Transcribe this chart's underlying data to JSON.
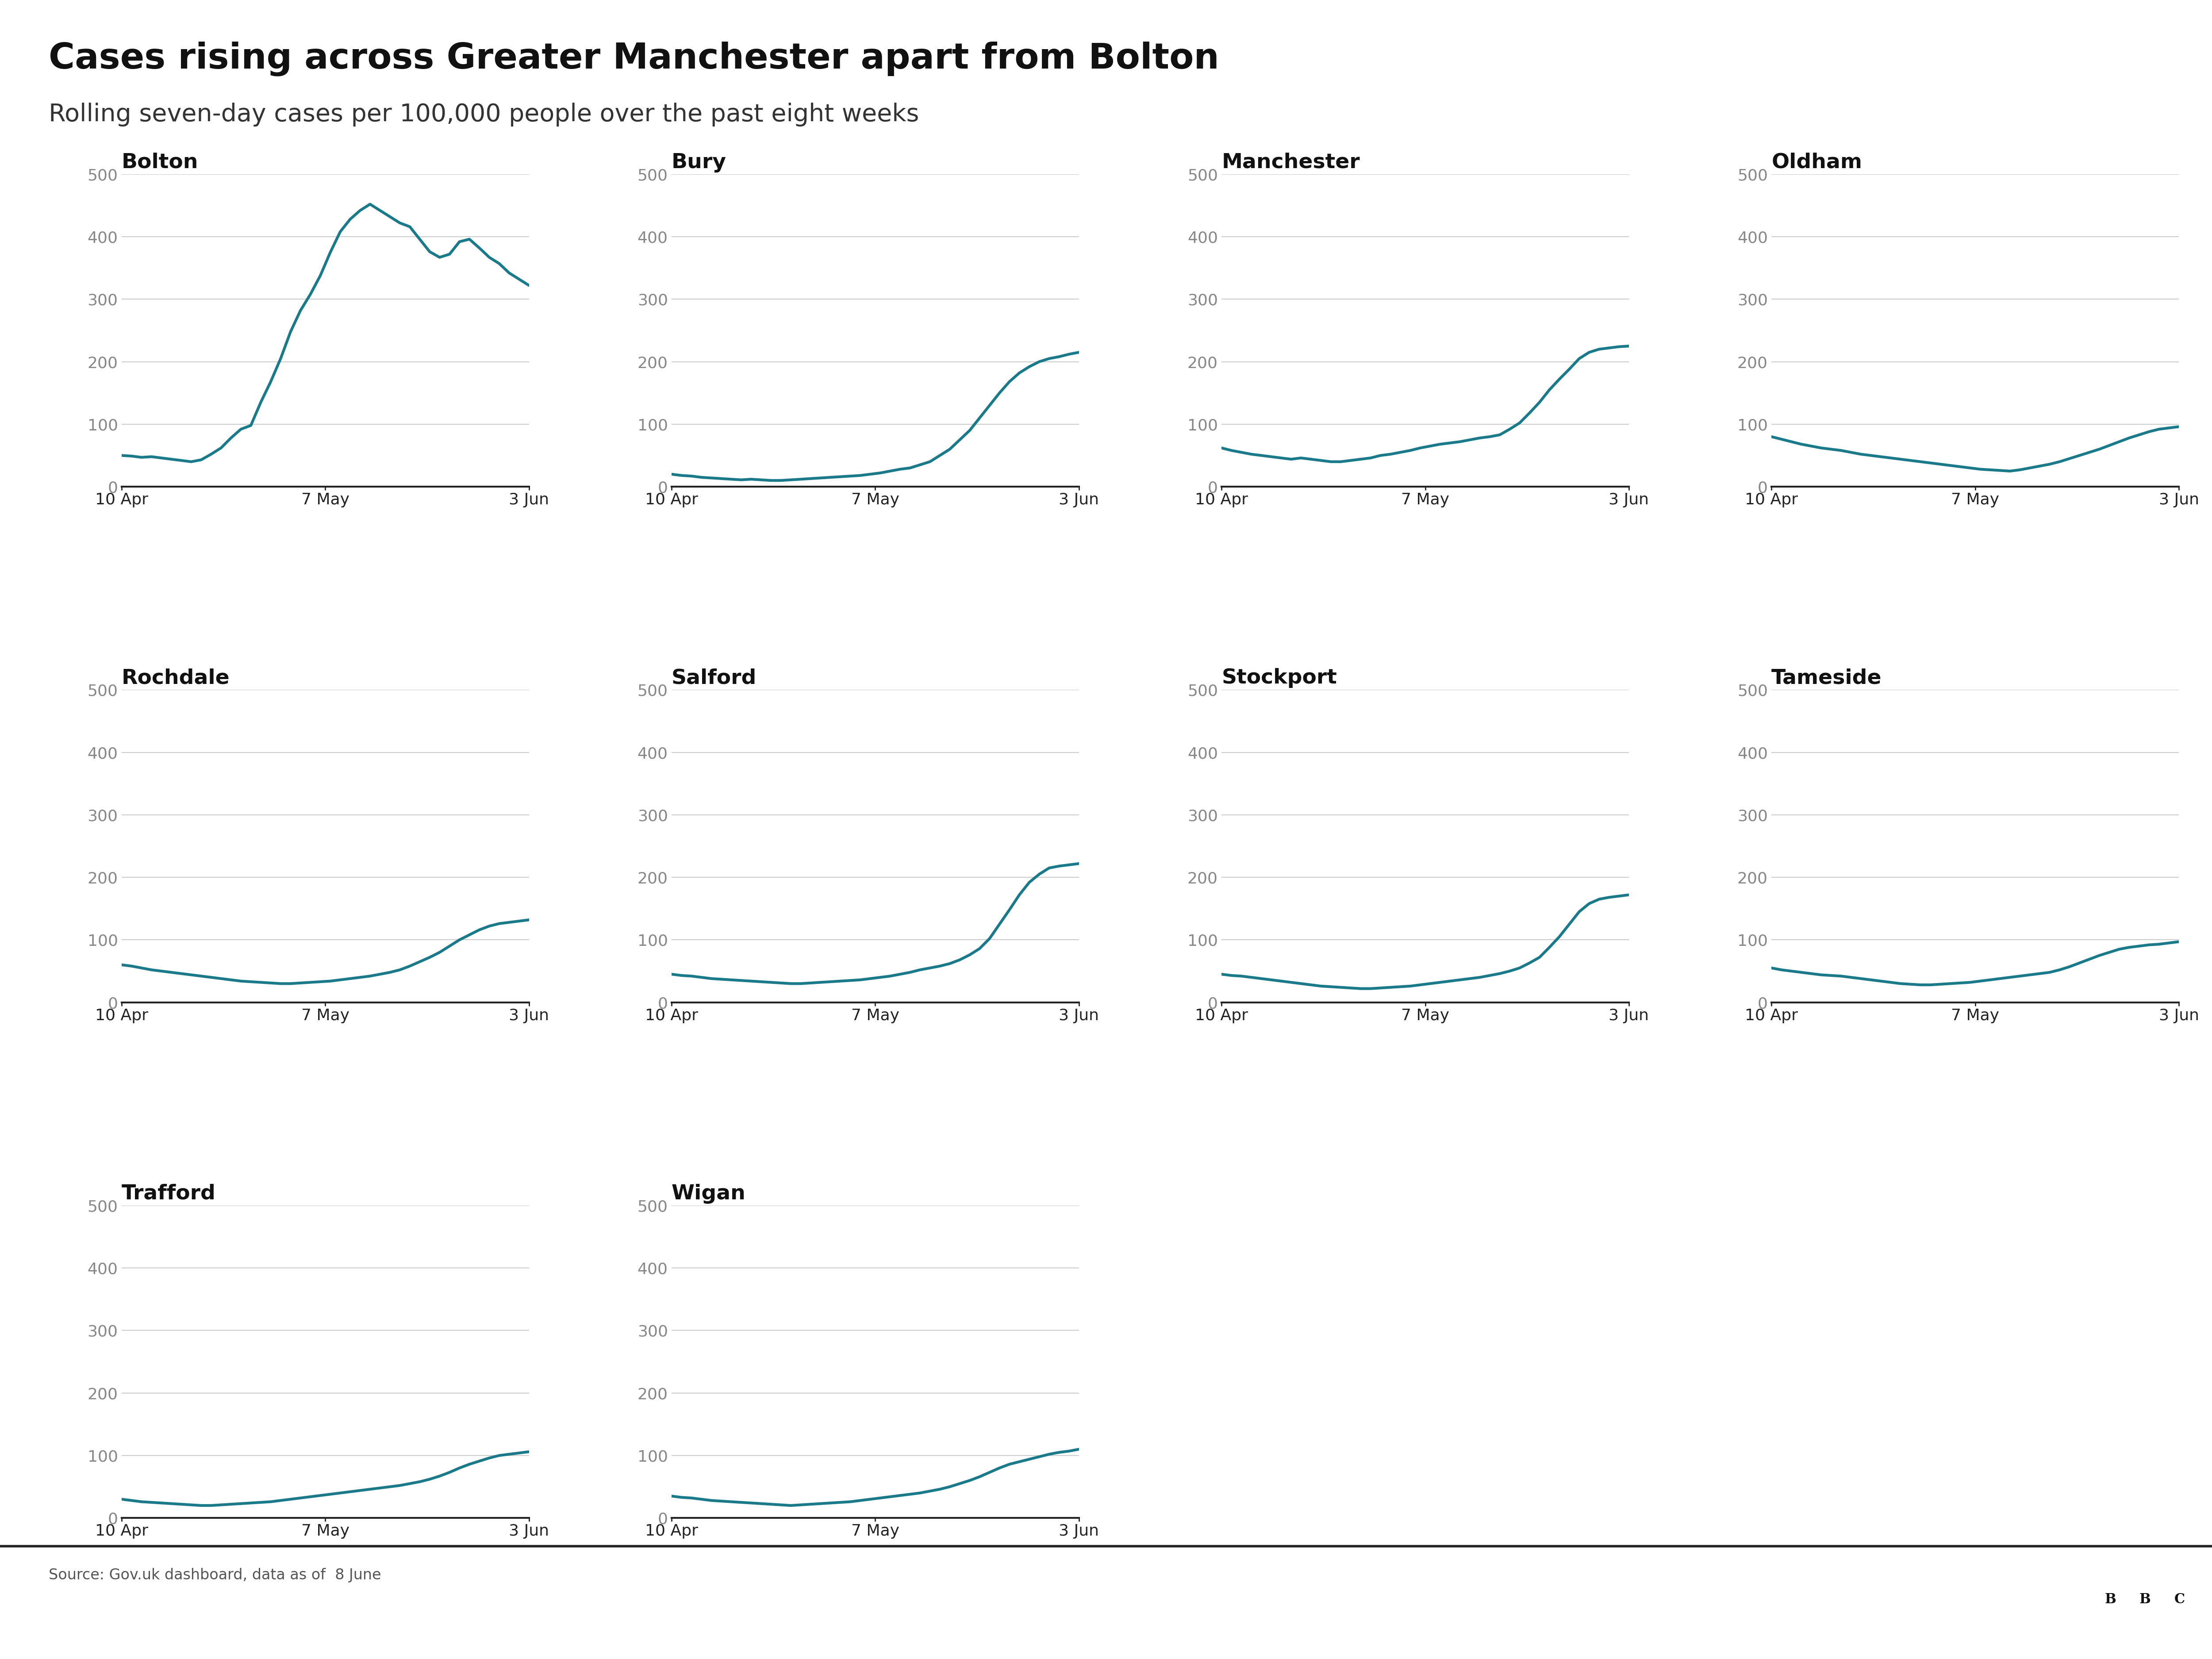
{
  "title": "Cases rising across Greater Manchester apart from Bolton",
  "subtitle": "Rolling seven-day cases per 100,000 people over the past eight weeks",
  "source": "Source: Gov.uk dashboard, data as of  8 June",
  "line_color": "#1a7a8a",
  "background_color": "#ffffff",
  "ylim": [
    0,
    500
  ],
  "yticks": [
    0,
    100,
    200,
    300,
    400,
    500
  ],
  "x_tick_labels": [
    "10 Apr",
    "7 May",
    "3 Jun"
  ],
  "subplots": [
    {
      "title": "Bolton",
      "data": [
        50,
        49,
        47,
        48,
        46,
        44,
        42,
        40,
        43,
        52,
        62,
        78,
        92,
        98,
        135,
        168,
        205,
        248,
        282,
        308,
        338,
        375,
        408,
        428,
        442,
        452,
        442,
        432,
        422,
        416,
        396,
        376,
        367,
        372,
        392,
        396,
        382,
        367,
        357,
        342,
        332,
        322
      ]
    },
    {
      "title": "Bury",
      "data": [
        20,
        18,
        17,
        15,
        14,
        13,
        12,
        11,
        12,
        11,
        10,
        10,
        11,
        12,
        13,
        14,
        15,
        16,
        17,
        18,
        20,
        22,
        25,
        28,
        30,
        35,
        40,
        50,
        60,
        75,
        90,
        110,
        130,
        150,
        168,
        182,
        192,
        200,
        205,
        208,
        212,
        215
      ]
    },
    {
      "title": "Manchester",
      "data": [
        62,
        58,
        55,
        52,
        50,
        48,
        46,
        44,
        46,
        44,
        42,
        40,
        40,
        42,
        44,
        46,
        50,
        52,
        55,
        58,
        62,
        65,
        68,
        70,
        72,
        75,
        78,
        80,
        83,
        92,
        102,
        118,
        135,
        155,
        172,
        188,
        205,
        215,
        220,
        222,
        224,
        225
      ]
    },
    {
      "title": "Oldham",
      "data": [
        80,
        76,
        72,
        68,
        65,
        62,
        60,
        58,
        55,
        52,
        50,
        48,
        46,
        44,
        42,
        40,
        38,
        36,
        34,
        32,
        30,
        28,
        27,
        26,
        25,
        27,
        30,
        33,
        36,
        40,
        45,
        50,
        55,
        60,
        66,
        72,
        78,
        83,
        88,
        92,
        94,
        96
      ]
    },
    {
      "title": "Rochdale",
      "data": [
        60,
        58,
        55,
        52,
        50,
        48,
        46,
        44,
        42,
        40,
        38,
        36,
        34,
        33,
        32,
        31,
        30,
        30,
        31,
        32,
        33,
        34,
        36,
        38,
        40,
        42,
        45,
        48,
        52,
        58,
        65,
        72,
        80,
        90,
        100,
        108,
        116,
        122,
        126,
        128,
        130,
        132
      ]
    },
    {
      "title": "Salford",
      "data": [
        45,
        43,
        42,
        40,
        38,
        37,
        36,
        35,
        34,
        33,
        32,
        31,
        30,
        30,
        31,
        32,
        33,
        34,
        35,
        36,
        38,
        40,
        42,
        45,
        48,
        52,
        55,
        58,
        62,
        68,
        76,
        86,
        102,
        125,
        148,
        172,
        192,
        205,
        215,
        218,
        220,
        222
      ]
    },
    {
      "title": "Stockport",
      "data": [
        45,
        43,
        42,
        40,
        38,
        36,
        34,
        32,
        30,
        28,
        26,
        25,
        24,
        23,
        22,
        22,
        23,
        24,
        25,
        26,
        28,
        30,
        32,
        34,
        36,
        38,
        40,
        43,
        46,
        50,
        55,
        63,
        72,
        88,
        105,
        125,
        145,
        158,
        165,
        168,
        170,
        172
      ]
    },
    {
      "title": "Tameside",
      "data": [
        55,
        52,
        50,
        48,
        46,
        44,
        43,
        42,
        40,
        38,
        36,
        34,
        32,
        30,
        29,
        28,
        28,
        29,
        30,
        31,
        32,
        34,
        36,
        38,
        40,
        42,
        44,
        46,
        48,
        52,
        57,
        63,
        69,
        75,
        80,
        85,
        88,
        90,
        92,
        93,
        95,
        97
      ]
    },
    {
      "title": "Trafford",
      "data": [
        30,
        28,
        26,
        25,
        24,
        23,
        22,
        21,
        20,
        20,
        21,
        22,
        23,
        24,
        25,
        26,
        28,
        30,
        32,
        34,
        36,
        38,
        40,
        42,
        44,
        46,
        48,
        50,
        52,
        55,
        58,
        62,
        67,
        73,
        80,
        86,
        91,
        96,
        100,
        102,
        104,
        106
      ]
    },
    {
      "title": "Wigan",
      "data": [
        35,
        33,
        32,
        30,
        28,
        27,
        26,
        25,
        24,
        23,
        22,
        21,
        20,
        21,
        22,
        23,
        24,
        25,
        26,
        28,
        30,
        32,
        34,
        36,
        38,
        40,
        43,
        46,
        50,
        55,
        60,
        66,
        73,
        80,
        86,
        90,
        94,
        98,
        102,
        105,
        107,
        110
      ]
    }
  ]
}
